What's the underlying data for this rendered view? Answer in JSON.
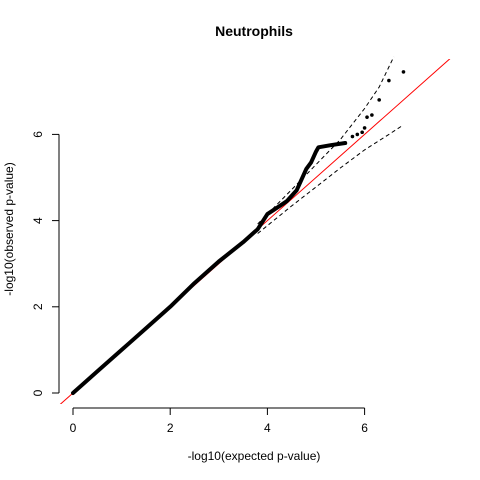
{
  "chart_data": {
    "type": "scatter",
    "title": "Neutrophils",
    "xlabel": "-log10(expected p-value)",
    "ylabel": "-log10(observed p-value)",
    "xlim": [
      0,
      6.9
    ],
    "ylim": [
      0,
      6.9
    ],
    "x_ticks": [
      0,
      2,
      4,
      6
    ],
    "y_ticks": [
      0,
      2,
      4,
      6
    ],
    "grid": false,
    "colors": {
      "points": "#000000",
      "reference_line": "#ff0000",
      "confidence_band": "#000000"
    },
    "reference_line": {
      "intercept": 0,
      "slope": 1
    },
    "confidence_band_style": "dashed",
    "confidence_band": {
      "upper": [
        [
          3.8,
          3.92
        ],
        [
          4.5,
          4.72
        ],
        [
          5.0,
          5.3
        ],
        [
          5.5,
          5.88
        ],
        [
          6.0,
          6.6
        ],
        [
          6.3,
          7.1
        ],
        [
          6.6,
          7.8
        ]
      ],
      "lower": [
        [
          3.8,
          3.7
        ],
        [
          4.5,
          4.34
        ],
        [
          5.0,
          4.78
        ],
        [
          5.5,
          5.22
        ],
        [
          6.0,
          5.64
        ],
        [
          6.5,
          6.0
        ],
        [
          6.8,
          6.22
        ]
      ]
    },
    "points_trend": [
      [
        0.0,
        0.0
      ],
      [
        0.5,
        0.5
      ],
      [
        1.0,
        1.0
      ],
      [
        1.5,
        1.5
      ],
      [
        2.0,
        2.0
      ],
      [
        2.5,
        2.55
      ],
      [
        3.0,
        3.05
      ],
      [
        3.5,
        3.5
      ],
      [
        3.8,
        3.8
      ],
      [
        4.0,
        4.15
      ],
      [
        4.2,
        4.3
      ],
      [
        4.4,
        4.45
      ],
      [
        4.6,
        4.7
      ],
      [
        4.8,
        5.2
      ],
      [
        4.9,
        5.35
      ],
      [
        5.0,
        5.6
      ],
      [
        5.05,
        5.7
      ],
      [
        5.3,
        5.75
      ],
      [
        5.6,
        5.8
      ]
    ],
    "points_tail": [
      [
        5.75,
        5.95
      ],
      [
        5.85,
        6.0
      ],
      [
        5.95,
        6.05
      ],
      [
        6.0,
        6.15
      ],
      [
        6.05,
        6.4
      ],
      [
        6.15,
        6.45
      ],
      [
        6.3,
        6.8
      ],
      [
        6.5,
        7.25
      ],
      [
        6.8,
        7.45
      ]
    ]
  }
}
